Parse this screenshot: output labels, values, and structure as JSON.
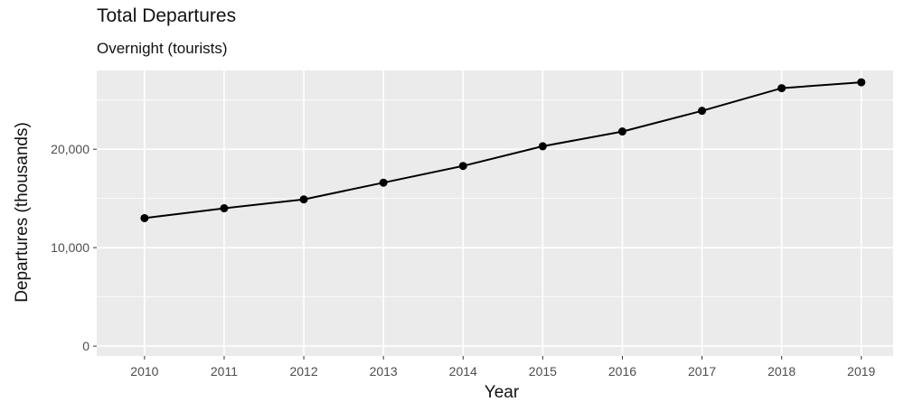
{
  "chart_data": {
    "type": "line",
    "title": "Total Departures",
    "subtitle": "Overnight (tourists)",
    "xlabel": "Year",
    "ylabel": "Departures (thousands)",
    "x": [
      2010,
      2011,
      2012,
      2013,
      2014,
      2015,
      2016,
      2017,
      2018,
      2019
    ],
    "values": [
      13000,
      14000,
      14900,
      16600,
      18300,
      20300,
      21800,
      23900,
      26200,
      26800
    ],
    "y_ticks": [
      0,
      10000,
      20000
    ],
    "y_tick_labels": [
      "0",
      "10,000",
      "20,000"
    ],
    "x_tick_labels": [
      "2010",
      "2011",
      "2012",
      "2013",
      "2014",
      "2015",
      "2016",
      "2017",
      "2018",
      "2019"
    ],
    "ylim": [
      -1000,
      28000
    ],
    "xlim": [
      2009.4,
      2019.4
    ],
    "grid": true,
    "colors": {
      "panel": "#ebebeb",
      "grid": "#ffffff",
      "line": "#000000",
      "axis_text": "#4d4d4d"
    }
  }
}
